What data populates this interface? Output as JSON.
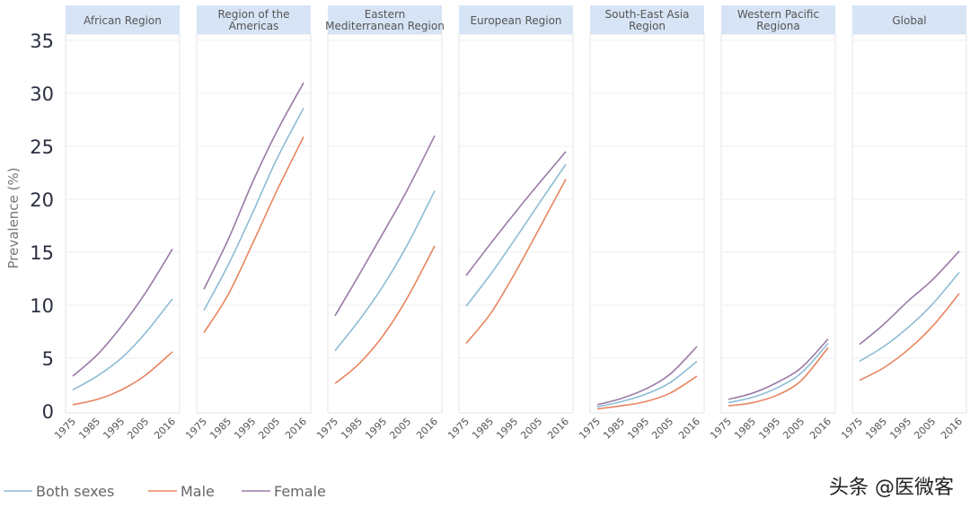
{
  "chart_data": {
    "type": "line",
    "ylabel": "Prevalence (%)",
    "ylim": [
      0,
      35
    ],
    "yticks": [
      0,
      5,
      10,
      15,
      20,
      25,
      30,
      35
    ],
    "xticks": [
      "1975",
      "1985",
      "1995",
      "2005",
      "2016"
    ],
    "x": [
      1975,
      1985,
      1995,
      2005,
      2016
    ],
    "grid": true,
    "legend_position": "bottom-left",
    "series_colors": {
      "Both sexes": "#8dbcd6",
      "Male": "#e8855f",
      "Female": "#9a7aa6"
    },
    "header_color": "#d6e4f5",
    "legend": [
      "Both sexes",
      "Male",
      "Female"
    ],
    "panels": [
      {
        "title": "African Region",
        "series": [
          {
            "name": "Both sexes",
            "values": [
              2.0,
              3.3,
              5.0,
              7.4,
              10.6
            ]
          },
          {
            "name": "Male",
            "values": [
              0.6,
              1.1,
              2.0,
              3.4,
              5.6
            ]
          },
          {
            "name": "Female",
            "values": [
              3.3,
              5.3,
              8.0,
              11.2,
              15.3
            ]
          }
        ]
      },
      {
        "title": "Region of the Americas",
        "series": [
          {
            "name": "Both sexes",
            "values": [
              9.5,
              13.8,
              18.7,
              23.8,
              28.6
            ]
          },
          {
            "name": "Male",
            "values": [
              7.4,
              11.0,
              15.8,
              20.8,
              25.9
            ]
          },
          {
            "name": "Female",
            "values": [
              11.5,
              16.2,
              21.6,
              26.4,
              31.0
            ]
          }
        ]
      },
      {
        "title": "Eastern Mediterranean Region",
        "series": [
          {
            "name": "Both sexes",
            "values": [
              5.7,
              8.6,
              11.9,
              15.8,
              20.8
            ]
          },
          {
            "name": "Male",
            "values": [
              2.6,
              4.5,
              7.2,
              10.8,
              15.6
            ]
          },
          {
            "name": "Female",
            "values": [
              9.0,
              12.9,
              16.9,
              21.0,
              26.0
            ]
          }
        ]
      },
      {
        "title": "European Region",
        "series": [
          {
            "name": "Both sexes",
            "values": [
              9.9,
              12.9,
              16.2,
              19.6,
              23.3
            ]
          },
          {
            "name": "Male",
            "values": [
              6.4,
              9.2,
              13.0,
              17.2,
              21.9
            ]
          },
          {
            "name": "Female",
            "values": [
              12.8,
              15.8,
              18.7,
              21.5,
              24.5
            ]
          }
        ]
      },
      {
        "title": "South-East Asia Region",
        "series": [
          {
            "name": "Both sexes",
            "values": [
              0.4,
              0.9,
              1.6,
              2.7,
              4.7
            ]
          },
          {
            "name": "Male",
            "values": [
              0.2,
              0.5,
              0.9,
              1.7,
              3.3
            ]
          },
          {
            "name": "Female",
            "values": [
              0.6,
              1.2,
              2.1,
              3.5,
              6.1
            ]
          }
        ]
      },
      {
        "title": "Western Pacific Regiona",
        "series": [
          {
            "name": "Both sexes",
            "values": [
              0.8,
              1.3,
              2.2,
              3.6,
              6.4
            ]
          },
          {
            "name": "Male",
            "values": [
              0.5,
              0.8,
              1.5,
              2.9,
              6.0
            ]
          },
          {
            "name": "Female",
            "values": [
              1.1,
              1.7,
              2.7,
              4.1,
              6.8
            ]
          }
        ]
      },
      {
        "title": "Global",
        "series": [
          {
            "name": "Both sexes",
            "values": [
              4.7,
              6.1,
              7.9,
              10.1,
              13.1
            ]
          },
          {
            "name": "Male",
            "values": [
              2.9,
              4.1,
              5.8,
              8.0,
              11.1
            ]
          },
          {
            "name": "Female",
            "values": [
              6.3,
              8.2,
              10.4,
              12.4,
              15.1
            ]
          }
        ]
      }
    ]
  },
  "watermark": "头条 @医微客"
}
